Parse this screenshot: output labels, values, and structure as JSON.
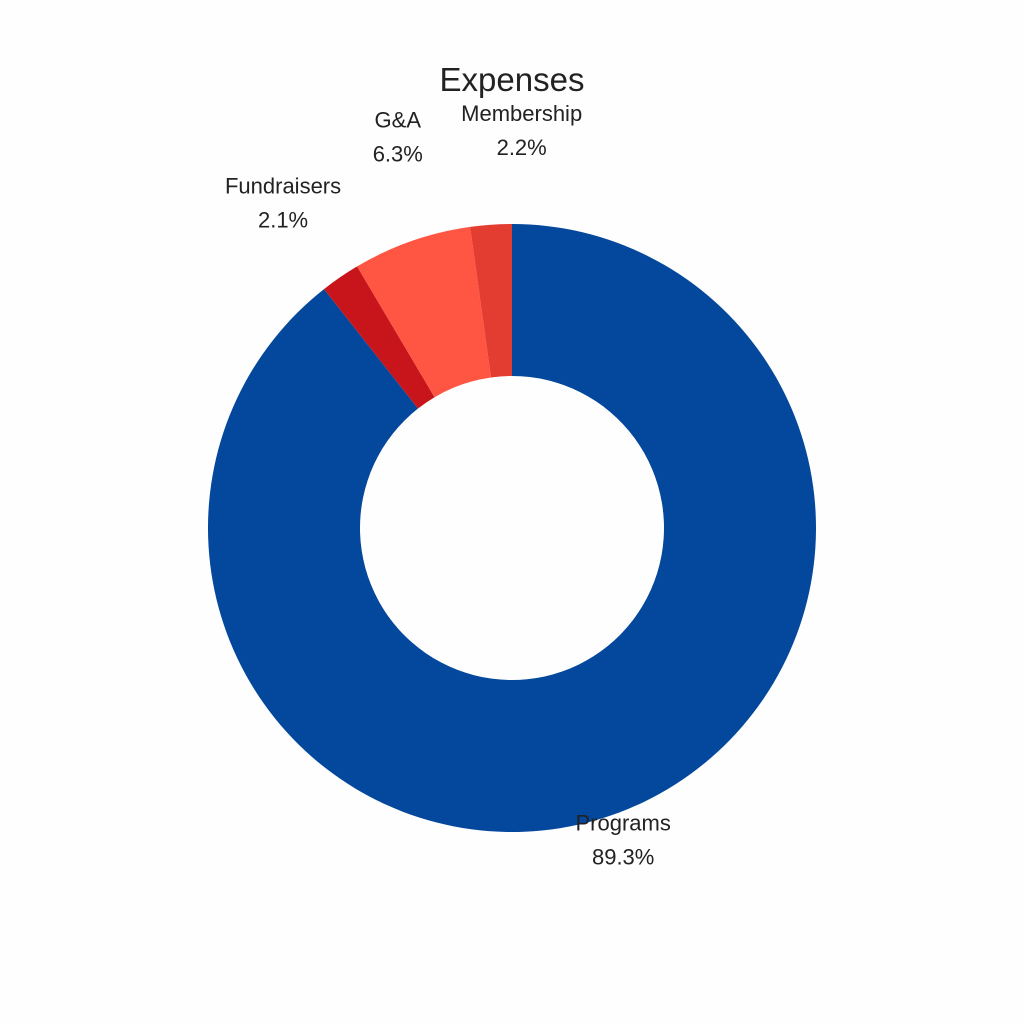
{
  "chart_data": {
    "type": "pie",
    "style": "donut",
    "title": "Expenses",
    "slices": [
      {
        "label": "Programs",
        "value": 89.3,
        "value_text": "89.3%",
        "color": "#03489c"
      },
      {
        "label": "Fundraisers",
        "value": 2.1,
        "value_text": "2.1%",
        "color": "#c8141b"
      },
      {
        "label": "G&A",
        "value": 6.3,
        "value_text": "6.3%",
        "color": "#fe5643"
      },
      {
        "label": "Membership",
        "value": 2.2,
        "value_text": "2.2%",
        "color": "#e33c31"
      }
    ],
    "start_angle": "12 o'clock",
    "direction": "clockwise",
    "legend": "none"
  }
}
